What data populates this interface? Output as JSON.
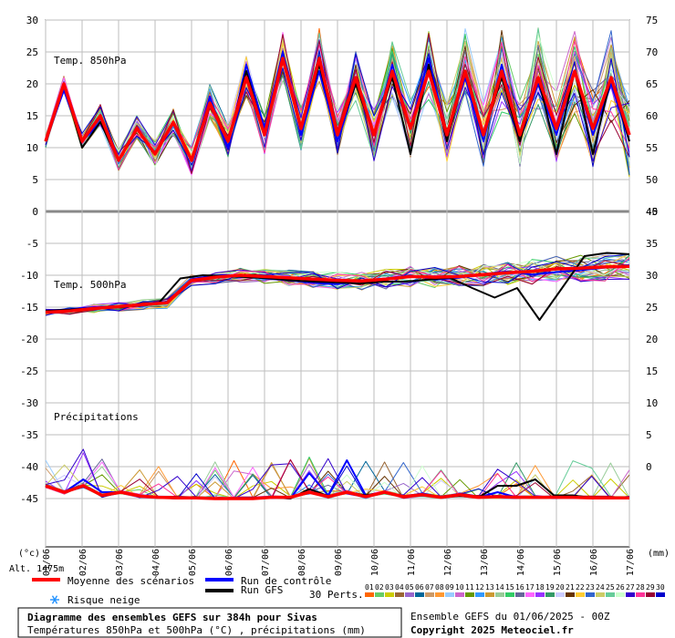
{
  "chart_data": {
    "type": "line",
    "title": "Diagramme des ensembles GEFS sur 384h pour Sivas",
    "subtitle": "Températures 850hPa et 500hPa (°C) , précipitations (mm)",
    "x_dates": [
      "01/06",
      "02/06",
      "03/06",
      "04/06",
      "05/06",
      "06/06",
      "07/06",
      "08/06",
      "09/06",
      "10/06",
      "11/06",
      "12/06",
      "13/06",
      "14/06",
      "15/06",
      "16/06",
      "17/06"
    ],
    "left_axis_ticks": [
      30,
      25,
      20,
      15,
      10,
      5,
      0,
      -5,
      -10,
      -15,
      -20,
      -25,
      -30,
      -35,
      -40,
      -45
    ],
    "left_axis_unit": "(°c)",
    "right_axis_t850_ticks": [
      75,
      70,
      65,
      60,
      55,
      50,
      45
    ],
    "right_axis_t500_ticks": [
      40,
      35,
      30,
      25,
      20,
      15,
      10,
      5,
      0
    ],
    "right_axis_unit": "(mm)",
    "altitude_label": "Alt. 1475m",
    "panels": {
      "t850": "Temp. 850hPa",
      "t500": "Temp. 500hPa",
      "precip": "Précipitations"
    },
    "series": [
      {
        "name": "Moyenne des scénarios",
        "color": "#ff0000",
        "t850": [
          11,
          20,
          11,
          15,
          8,
          13,
          9,
          14,
          8,
          17,
          11,
          21,
          12,
          24,
          13,
          24,
          12,
          21,
          12,
          22,
          13,
          22,
          12,
          22,
          12,
          22,
          12,
          21,
          13,
          22,
          13,
          21,
          12
        ],
        "t500": [
          -15.8,
          -15.6,
          -15.2,
          -14.9,
          -14.6,
          -14.3,
          -10.8,
          -10.3,
          -10.0,
          -10.2,
          -10.4,
          -10.6,
          -10.8,
          -10.9,
          -10.6,
          -10.2,
          -10.3,
          -10.2,
          -9.9,
          -9.6,
          -9.4,
          -9.0,
          -8.9,
          -8.7,
          -8.6
        ],
        "precip": [
          2,
          1,
          2,
          0.5,
          1,
          0.4,
          0.2,
          0.1,
          0.1,
          0,
          0,
          0,
          0.2,
          0.2,
          1,
          0.3,
          1,
          0.3,
          1,
          0.3,
          0.6,
          0.2,
          0.6,
          0.2,
          0.3,
          0.2,
          0.2,
          0.2,
          0.2,
          0.1,
          0.1,
          0.1
        ]
      },
      {
        "name": "Run de contrôle",
        "color": "#0000ff",
        "t850": [
          11,
          19,
          11,
          14,
          8,
          13,
          9,
          14,
          8,
          18,
          10,
          23,
          13,
          25,
          12,
          22,
          11,
          20,
          12,
          23,
          13,
          24,
          12,
          21,
          11,
          23,
          12,
          20,
          12,
          22,
          12,
          20,
          11
        ],
        "t500": [
          -15.6,
          -15.3,
          -15.0,
          -14.9,
          -14.8,
          -14.1,
          -10.6,
          -10.0,
          -10.0,
          -10.5,
          -10.8,
          -11.2,
          -11.4,
          -10.8,
          -10.5,
          -10.0,
          -10.7,
          -10.4,
          -9.8,
          -9.4,
          -9.9,
          -9.5,
          -9.2,
          -8.8,
          -8.4
        ],
        "precip": [
          2,
          1,
          3,
          1,
          1,
          0.5,
          0.2,
          0,
          0.1,
          0,
          0,
          0,
          0.3,
          0,
          4,
          0.5,
          6,
          0.5,
          1,
          0.3,
          0.8,
          0.2,
          0.5,
          0.2,
          1,
          0.2,
          0.2,
          0.2,
          0.1,
          0.1,
          0.1,
          0.1
        ]
      },
      {
        "name": "Run GFS",
        "color": "#000000",
        "t850": [
          11,
          20,
          10,
          14,
          8,
          13,
          9,
          14,
          8,
          17,
          11,
          22,
          12,
          24,
          13,
          23,
          12,
          20,
          12,
          21,
          9,
          23,
          11,
          22,
          12,
          21,
          11,
          21,
          9,
          22,
          9,
          21,
          11
        ],
        "t500": [
          -15.6,
          -15.4,
          -15.2,
          -15.1,
          -14.8,
          -14.5,
          -10.5,
          -10.0,
          -10.1,
          -10.3,
          -10.5,
          -10.8,
          -11.0,
          -11.1,
          -11.3,
          -11.0,
          -11.0,
          -10.7,
          -10.4,
          -12.0,
          -13.5,
          -12.0,
          -17.0,
          -12.0,
          -7.0,
          -6.5,
          -6.7
        ],
        "precip": [
          2,
          1,
          2,
          0.5,
          1,
          0.4,
          0.2,
          0,
          0.1,
          0,
          0,
          0,
          0.2,
          0,
          1.5,
          0.4,
          1,
          0.5,
          1,
          0.3,
          0.6,
          0.2,
          0.4,
          0.2,
          2,
          2,
          3,
          0.5,
          0.5,
          0.1,
          0.1,
          0.1
        ]
      }
    ],
    "perturbations_label": "30 Perts.",
    "perturbation_ids": [
      "01",
      "02",
      "03",
      "04",
      "05",
      "06",
      "07",
      "08",
      "09",
      "10",
      "11",
      "12",
      "13",
      "14",
      "15",
      "16",
      "17",
      "18",
      "19",
      "20",
      "21",
      "22",
      "23",
      "24",
      "25",
      "26",
      "27",
      "28",
      "29",
      "30"
    ],
    "perturbation_colors": [
      "#ff6600",
      "#66cc66",
      "#cccc00",
      "#996633",
      "#9966cc",
      "#006699",
      "#cc9966",
      "#ff9933",
      "#99ccff",
      "#cc66cc",
      "#669900",
      "#3399ff",
      "#cc9933",
      "#99cc99",
      "#33cc66",
      "#666699",
      "#ff66ff",
      "#9933ff",
      "#339966",
      "#ccccff",
      "#663300",
      "#ffcc33",
      "#3366cc",
      "#cccc66",
      "#66cc99",
      "#ccffcc",
      "#3300cc",
      "#ff3399",
      "#990033",
      "#0000cc"
    ],
    "snow_risk_label": "Risque neige",
    "run_label": "Ensemble GEFS du 01/06/2025 - 00Z",
    "copyright": "Copyright 2025 Meteociel.fr"
  },
  "icons": {
    "snow": "snowflake-icon"
  }
}
